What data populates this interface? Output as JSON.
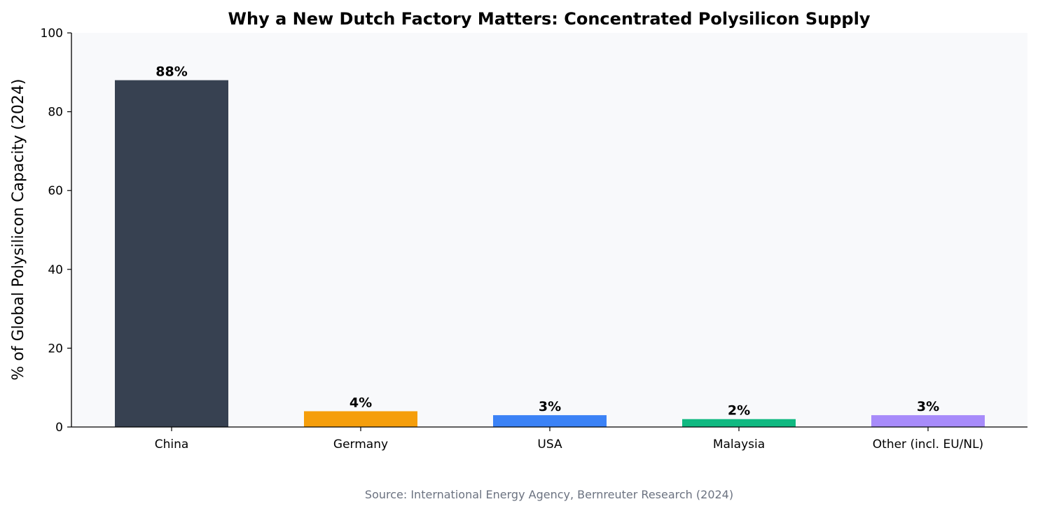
{
  "chart_data": {
    "type": "bar",
    "title": "Why a New Dutch Factory Matters: Concentrated Polysilicon Supply",
    "xlabel": "",
    "ylabel": "% of Global Polysilicon Capacity (2024)",
    "ylim": [
      0,
      100
    ],
    "yticks": [
      "0",
      "20",
      "40",
      "60",
      "80",
      "100"
    ],
    "categories": [
      "China",
      "Germany",
      "USA",
      "Malaysia",
      "Other (incl. EU/NL)"
    ],
    "values": [
      88,
      4,
      3,
      2,
      3
    ],
    "data_labels": [
      "88%",
      "4%",
      "3%",
      "2%",
      "3%"
    ],
    "colors": [
      "#374151",
      "#f59e0b",
      "#3b82f6",
      "#10b981",
      "#a78bfa"
    ],
    "plot_background": "#f8f9fb",
    "grid": false,
    "source": "Source: International Energy Agency, Bernreuter Research (2024)"
  }
}
